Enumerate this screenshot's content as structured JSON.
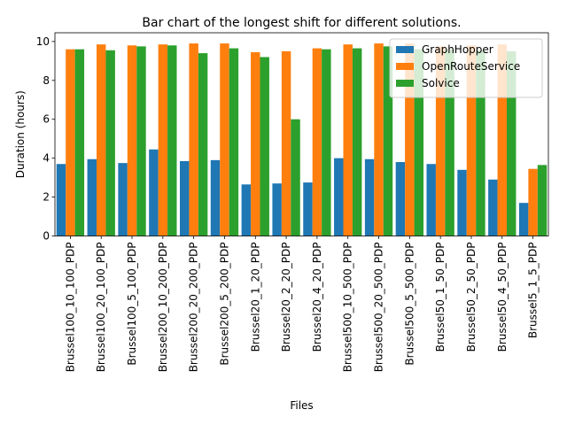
{
  "chart_data": {
    "type": "bar",
    "title": "Bar chart of the longest shift for different solutions.",
    "xlabel": "Files",
    "ylabel": "Duration (hours)",
    "ylim": [
      0,
      10.45
    ],
    "yticks": [
      0,
      2,
      4,
      6,
      8,
      10
    ],
    "grid": false,
    "legend_position": "top-right",
    "categories": [
      "Brussel100_10_100_PDP",
      "Brussel100_20_100_PDP",
      "Brussel100_5_100_PDP",
      "Brussel200_10_200_PDP",
      "Brussel200_20_200_PDP",
      "Brussel200_5_200_PDP",
      "Brussel20_1_20_PDP",
      "Brussel20_2_20_PDP",
      "Brussel20_4_20_PDP",
      "Brussel500_10_500_PDP",
      "Brussel500_20_500_PDP",
      "Brussel500_5_500_PDP",
      "Brussel50_1_50_PDP",
      "Brussel50_2_50_PDP",
      "Brussel50_4_50_PDP",
      "Brussel5_1_5_PDP"
    ],
    "series": [
      {
        "name": "GraphHopper",
        "color": "#1f77b4",
        "values": [
          3.7,
          3.95,
          3.75,
          4.45,
          3.85,
          3.9,
          2.65,
          2.7,
          2.75,
          4.0,
          3.95,
          3.8,
          3.7,
          3.4,
          2.9,
          1.7
        ]
      },
      {
        "name": "OpenRouteService",
        "color": "#ff7f0e",
        "values": [
          9.6,
          9.85,
          9.8,
          9.85,
          9.9,
          9.9,
          9.45,
          9.5,
          9.65,
          9.85,
          9.9,
          9.9,
          9.75,
          9.8,
          9.85,
          3.45
        ]
      },
      {
        "name": "Solvice",
        "color": "#2ca02c",
        "values": [
          9.6,
          9.55,
          9.75,
          9.8,
          9.4,
          9.65,
          9.2,
          6.0,
          9.6,
          9.65,
          9.75,
          9.6,
          9.6,
          9.55,
          9.5,
          3.65
        ]
      }
    ]
  }
}
